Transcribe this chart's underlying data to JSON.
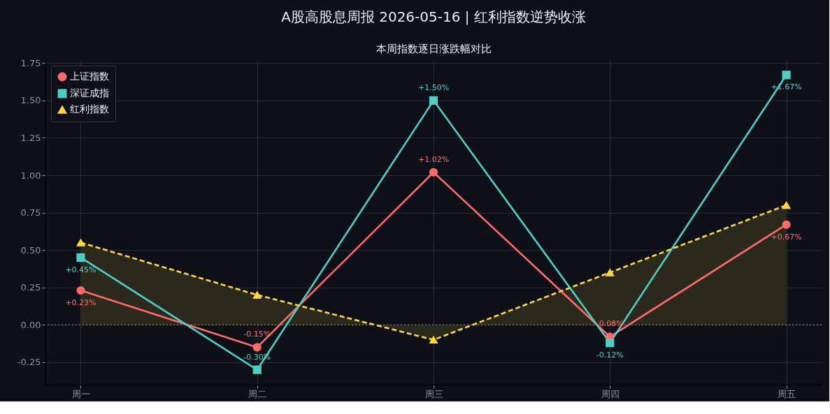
{
  "chart_data": {
    "type": "line",
    "title": "A股高股息周报 2026-05-16 | 红利指数逆势收涨",
    "subtitle": "本周指数逐日涨跌幅对比",
    "categories": [
      "周一",
      "周二",
      "周三",
      "周四",
      "周五"
    ],
    "series": [
      {
        "name": "上证指数",
        "color": "#ff6b6b",
        "marker": "circle",
        "line_style": "solid",
        "values": [
          0.23,
          -0.15,
          1.02,
          -0.08,
          0.67
        ],
        "value_labels": [
          "+0.23%",
          "-0.15%",
          "+1.02%",
          "-0.08%",
          "+0.67%"
        ]
      },
      {
        "name": "深证成指",
        "color": "#4ecdc4",
        "marker": "square",
        "line_style": "solid",
        "values": [
          0.45,
          -0.3,
          1.5,
          -0.12,
          1.67
        ],
        "value_labels": [
          "+0.45%",
          "-0.30%",
          "+1.50%",
          "-0.12%",
          "+1.67%"
        ]
      },
      {
        "name": "红利指数",
        "type": "area",
        "color": "#ffd93d",
        "marker": "triangle",
        "line_style": "dashed",
        "values": [
          0.55,
          0.2,
          -0.1,
          0.35,
          0.8
        ]
      }
    ],
    "ylim": [
      -0.4,
      1.77
    ],
    "yticks": [
      -0.25,
      {
        "value": 0,
        "label": "0.00"
      },
      0.25,
      {
        "value": 0.5,
        "label": "0.50"
      },
      0.75,
      {
        "value": 1,
        "label": "1.00"
      },
      1.25,
      {
        "value": 1.5,
        "label": "1.50"
      },
      1.75
    ],
    "ref_lines": [
      {
        "axis": "y",
        "value": 0,
        "color": "#8b949e",
        "line_style": "dotted"
      }
    ],
    "grid": true,
    "legend": "top left"
  }
}
